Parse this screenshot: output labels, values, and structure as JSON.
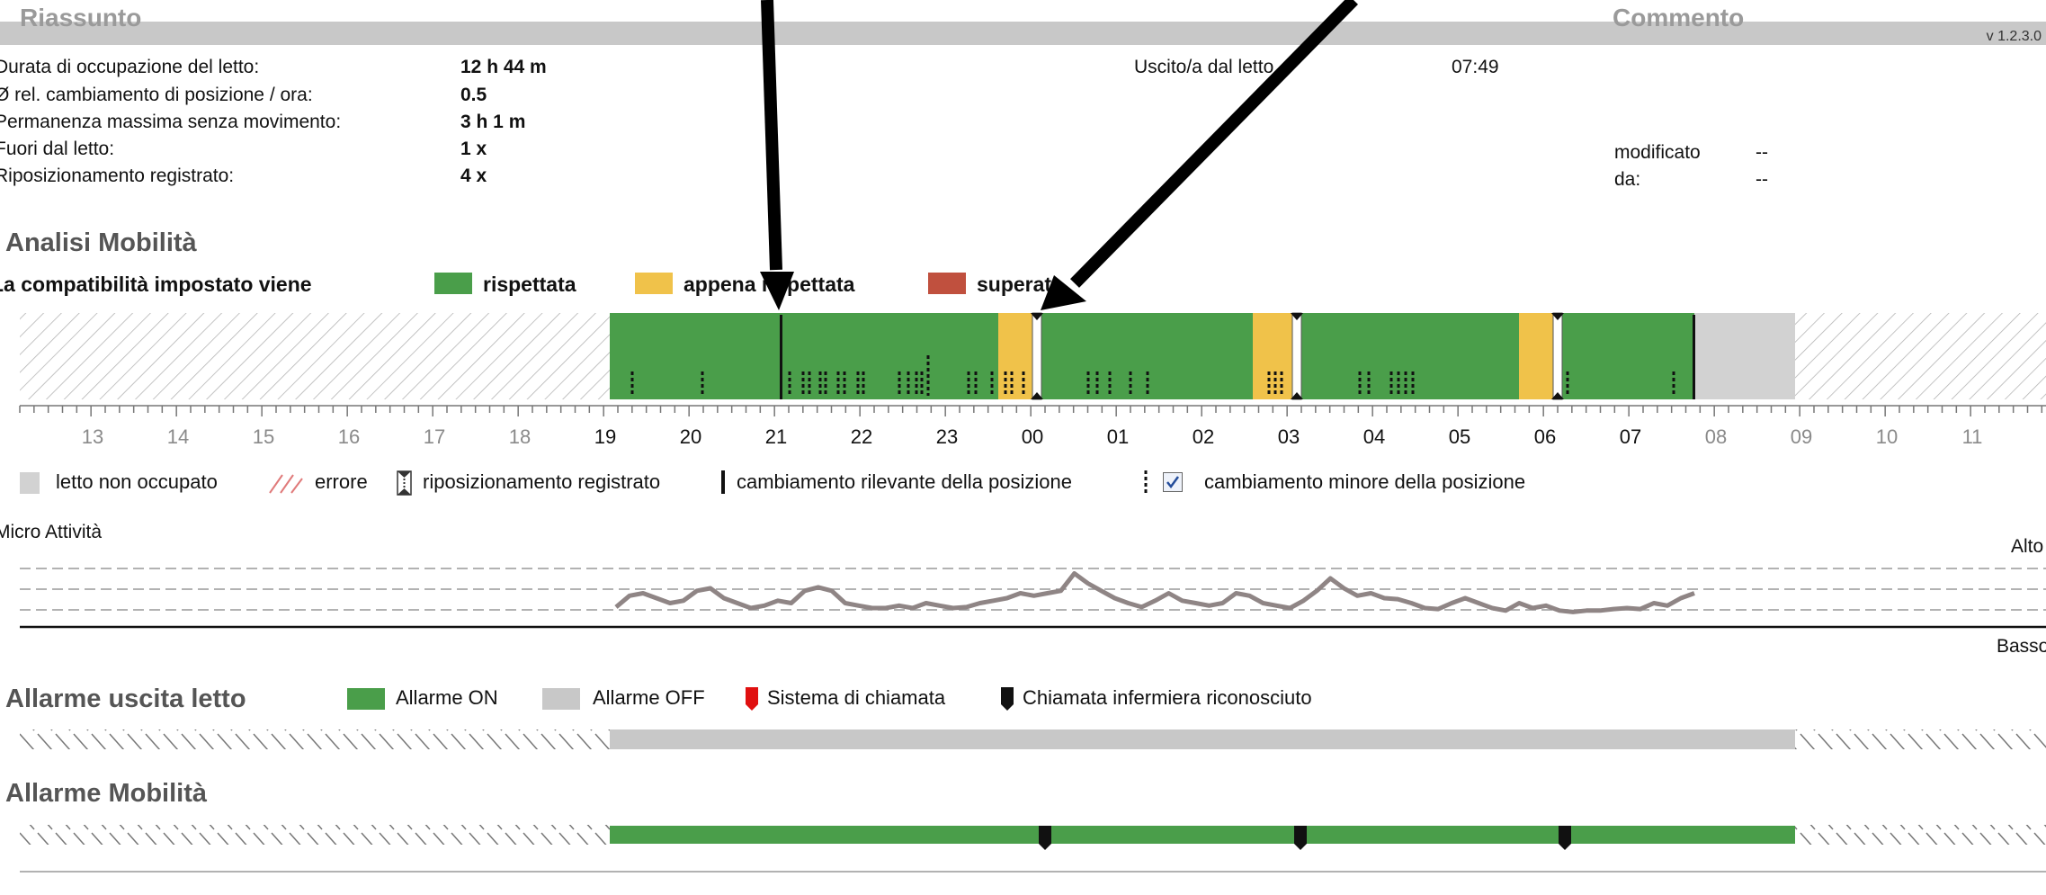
{
  "summary": {
    "title": "Riassunto",
    "comment_title": "Commento",
    "version": "v 1.2.3.0",
    "rows": [
      {
        "label": "Durata di occupazione del letto:",
        "value": "12 h 44 m"
      },
      {
        "label": "Ø rel. cambiamento di posizione / ora:",
        "value": "0.5"
      },
      {
        "label": "Permanenza massima senza movimento:",
        "value": "3 h 1 m"
      },
      {
        "label": "Fuori dal letto:",
        "value": "1 x"
      },
      {
        "label": "Riposizionamento registrato:",
        "value": "4 x"
      }
    ],
    "left_out": {
      "label": "Uscito/a dal letto",
      "value": "07:49"
    },
    "modified": {
      "label": "modificato",
      "value": "--"
    },
    "by": {
      "label": "da:",
      "value": "--"
    }
  },
  "mobility": {
    "heading": "Analisi Mobilità",
    "compat_label": "La compatibilità impostato viene",
    "legend": [
      {
        "label": "rispettata",
        "color": "#4a9e4a"
      },
      {
        "label": "appena rispettata",
        "color": "#f0c24a"
      },
      {
        "label": "superata",
        "color": "#c0503e"
      }
    ],
    "hours": [
      "13",
      "14",
      "15",
      "16",
      "17",
      "18",
      "19",
      "20",
      "21",
      "22",
      "23",
      "00",
      "01",
      "02",
      "03",
      "04",
      "05",
      "06",
      "07",
      "08",
      "09",
      "10",
      "11"
    ],
    "bottom_legend": {
      "unoccupied": "letto non occupato",
      "error": "errore",
      "reposition": "riposizionamento registrato",
      "major": "cambiamento rilevante della posizione",
      "minor": "cambiamento minore della posizione"
    },
    "minor_checked": true
  },
  "micro": {
    "title": "Micro Attività",
    "high": "Alto",
    "low": "Basso",
    "line_color": "#8f8585",
    "levels": [
      0.22,
      0.45,
      0.5,
      0.4,
      0.3,
      0.35,
      0.55,
      0.6,
      0.4,
      0.3,
      0.2,
      0.25,
      0.35,
      0.3,
      0.55,
      0.62,
      0.55,
      0.3,
      0.25,
      0.2,
      0.2,
      0.25,
      0.2,
      0.3,
      0.25,
      0.2,
      0.22,
      0.3,
      0.35,
      0.4,
      0.5,
      0.45,
      0.5,
      0.55,
      0.9,
      0.7,
      0.55,
      0.4,
      0.3,
      0.22,
      0.35,
      0.5,
      0.35,
      0.3,
      0.25,
      0.3,
      0.5,
      0.45,
      0.3,
      0.25,
      0.2,
      0.35,
      0.55,
      0.8,
      0.6,
      0.45,
      0.5,
      0.4,
      0.38,
      0.3,
      0.2,
      0.18,
      0.3,
      0.4,
      0.3,
      0.2,
      0.15,
      0.3,
      0.2,
      0.25,
      0.15,
      0.12,
      0.15,
      0.15,
      0.18,
      0.2,
      0.18,
      0.3,
      0.25,
      0.4,
      0.5
    ]
  },
  "bed_exit": {
    "heading": "Allarme uscita letto",
    "legend": [
      {
        "label": "Allarme ON",
        "color": "#4a9e4a"
      },
      {
        "label": "Allarme OFF",
        "color": "#c8c8c8"
      }
    ],
    "nurse_call": "Sistema di chiamata",
    "nurse_call_color": "#e01010",
    "nurse_ack": "Chiamata infermiera riconosciuto"
  },
  "mobility_alarm": {
    "heading": "Allarme Mobilità"
  },
  "colors": {
    "green": "#4a9e4a",
    "yellow": "#f0c24a",
    "gray": "#d2d2d2"
  }
}
